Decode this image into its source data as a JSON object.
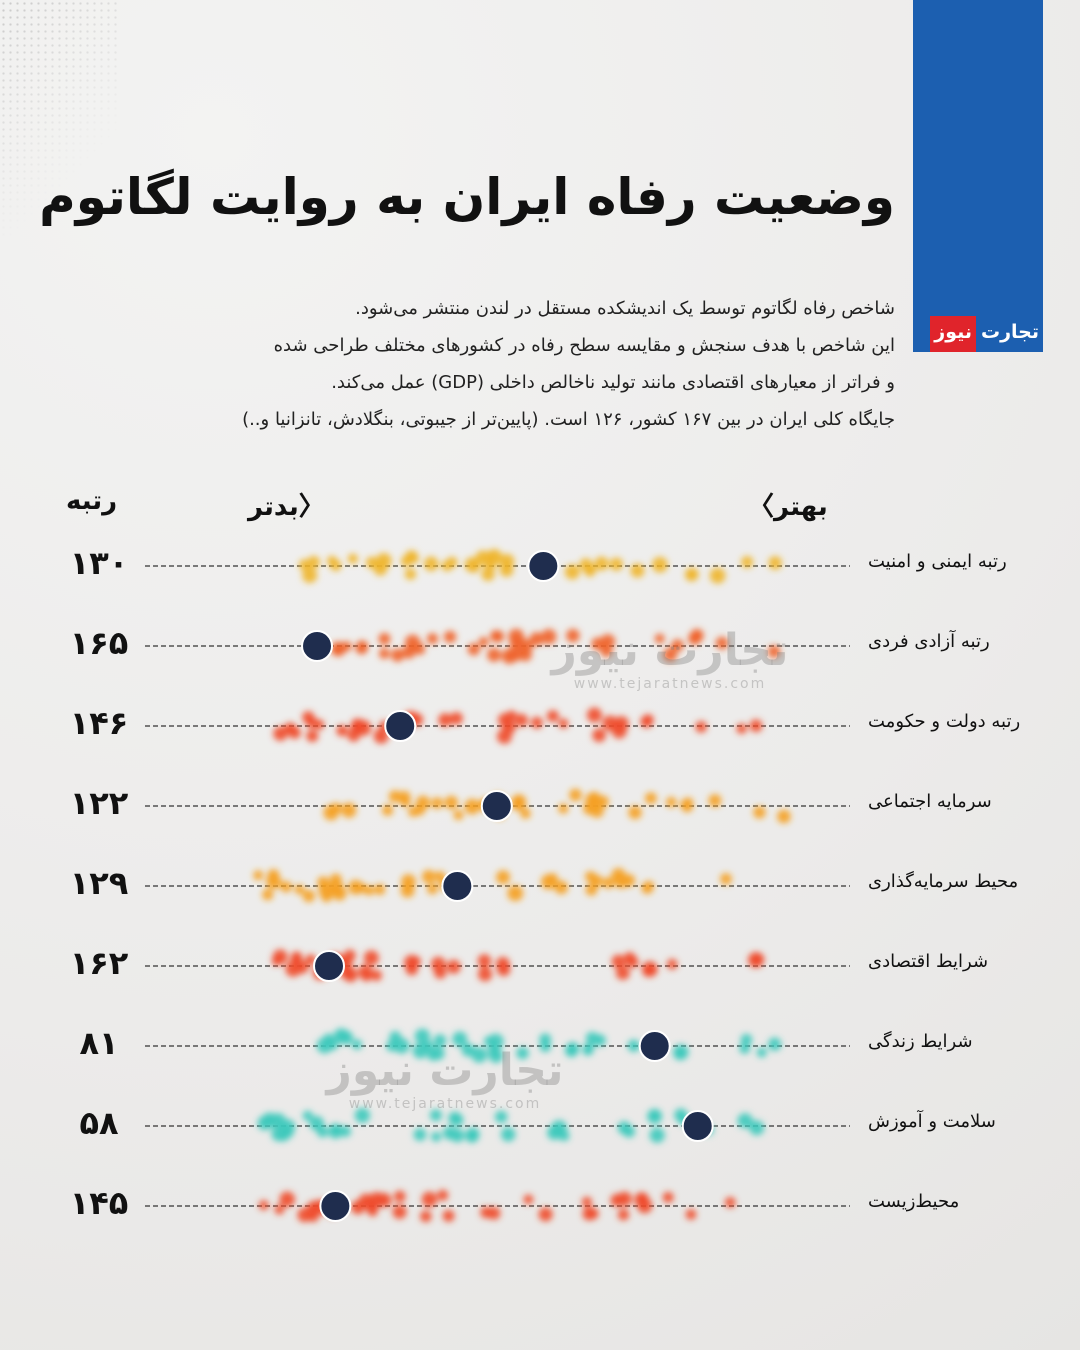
{
  "title": "وضعیت رفاه ایران به روایت لگاتوم",
  "brand": {
    "part1": "تجارت",
    "part2": "نیوز",
    "blue": "#1c5fb0",
    "red": "#e0242b"
  },
  "intro": [
    "شاخص رفاه لگاتوم توسط یک اندیشکده مستقل در لندن منتشر می‌شود.",
    "این شاخص با هدف سنجش و مقایسه سطح رفاه در کشورهای مختلف طراحی شده",
    "و فراتر از معیارهای اقتصادی مانند تولید ناخالص داخلی (GDP) عمل می‌کند.",
    "جایگاه کلی ایران در بین ۱۶۷ کشور، ۱۲۶ است. (پایین‌تر از جیبوتی، بنگلادش، تانزانیا و..)"
  ],
  "watermark": {
    "name": "تجارت نیوز",
    "url": "www.tejaratnews.com"
  },
  "chart_data": {
    "type": "scatter",
    "title": "وضعیت رفاه ایران به روایت لگاتوم",
    "axis": {
      "better_label": "بهتر",
      "worse_label": "بدتر",
      "rank_header": "رتبه",
      "direction": "right = better"
    },
    "total_countries": 167,
    "highlight_color": "#1f2d4e",
    "rows": [
      {
        "label": "رتبه ایمنی و امنیت",
        "rank": 130,
        "rank_text": "۱۳۰",
        "position": 0.565,
        "color": "#f0b52a",
        "spread": [
          0.22,
          0.93
        ]
      },
      {
        "label": "رتبه آزادی فردی",
        "rank": 165,
        "rank_text": "۱۶۵",
        "position": 0.244,
        "color": "#f0632a",
        "spread": [
          0.27,
          0.93
        ]
      },
      {
        "label": "رتبه دولت و حکومت",
        "rank": 146,
        "rank_text": "۱۴۶",
        "position": 0.362,
        "color": "#f04a2a",
        "spread": [
          0.19,
          0.87
        ]
      },
      {
        "label": "سرمایه اجتماعی",
        "rank": 122,
        "rank_text": "۱۲۲",
        "position": 0.499,
        "color": "#f5a020",
        "spread": [
          0.25,
          0.93
        ]
      },
      {
        "label": "محیط سرمایه‌گذاری",
        "rank": 129,
        "rank_text": "۱۲۹",
        "position": 0.443,
        "color": "#f5a020",
        "spread": [
          0.16,
          0.89
        ]
      },
      {
        "label": "شرایط اقتصادی",
        "rank": 162,
        "rank_text": "۱۶۲",
        "position": 0.261,
        "color": "#f04a2a",
        "spread": [
          0.18,
          0.89
        ]
      },
      {
        "label": "شرایط زندگی",
        "rank": 81,
        "rank_text": "۸۱",
        "position": 0.723,
        "color": "#3cc9bb",
        "spread": [
          0.25,
          0.93
        ]
      },
      {
        "label": "سلامت و آموزش",
        "rank": 58,
        "rank_text": "۵۸",
        "position": 0.784,
        "color": "#3cc9bb",
        "spread": [
          0.16,
          0.92
        ]
      },
      {
        "label": "محیط‌زیست",
        "rank": 145,
        "rank_text": "۱۴۵",
        "position": 0.27,
        "color": "#f04a2a",
        "spread": [
          0.16,
          0.9
        ]
      }
    ]
  }
}
